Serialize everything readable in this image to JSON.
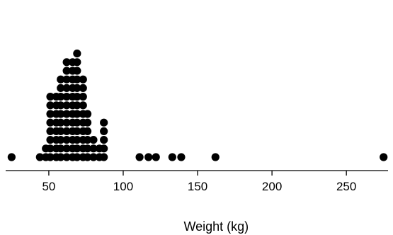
{
  "chart_data": {
    "type": "scatter",
    "subtype": "dot-plot",
    "title": "",
    "xlabel": "Weight (kg)",
    "ylabel": "",
    "xlim": [
      21,
      278
    ],
    "xticks": [
      50,
      100,
      150,
      200,
      250
    ],
    "xtick_labels": [
      "50",
      "100",
      "150",
      "200",
      "250"
    ],
    "grid": false,
    "legend": "none",
    "dot_color": "#000000",
    "bins": [
      {
        "x": 25,
        "count": 1
      },
      {
        "x": 44,
        "count": 1
      },
      {
        "x": 48,
        "count": 2
      },
      {
        "x": 51,
        "count": 8
      },
      {
        "x": 55,
        "count": 8
      },
      {
        "x": 58,
        "count": 10
      },
      {
        "x": 62,
        "count": 12
      },
      {
        "x": 66,
        "count": 12
      },
      {
        "x": 69,
        "count": 13
      },
      {
        "x": 73,
        "count": 10
      },
      {
        "x": 76,
        "count": 6
      },
      {
        "x": 80,
        "count": 3
      },
      {
        "x": 84,
        "count": 2
      },
      {
        "x": 87,
        "count": 5
      },
      {
        "x": 111,
        "count": 1
      },
      {
        "x": 117,
        "count": 1
      },
      {
        "x": 122,
        "count": 1
      },
      {
        "x": 133,
        "count": 1
      },
      {
        "x": 139,
        "count": 1
      },
      {
        "x": 162,
        "count": 1
      },
      {
        "x": 275,
        "count": 1
      }
    ]
  }
}
